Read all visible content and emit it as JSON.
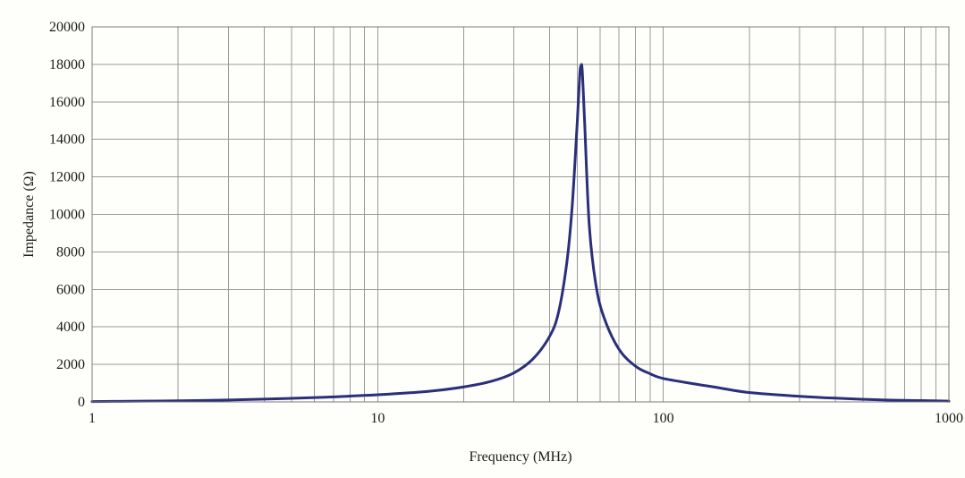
{
  "chart_data": {
    "type": "line",
    "xlabel": "Frequency (MHz)",
    "ylabel": "Impedance (Ω)",
    "x_scale": "log",
    "xlim": [
      1,
      1000
    ],
    "ylim": [
      0,
      20000
    ],
    "grid": true,
    "x_tick_labels": [
      "1",
      "10",
      "100",
      "1000"
    ],
    "x_tick_values": [
      1,
      10,
      100,
      1000
    ],
    "y_tick_labels": [
      "0",
      "2000",
      "4000",
      "6000",
      "8000",
      "10000",
      "12000",
      "14000",
      "16000",
      "18000",
      "20000"
    ],
    "y_tick_values": [
      0,
      2000,
      4000,
      6000,
      8000,
      10000,
      12000,
      14000,
      16000,
      18000,
      20000
    ],
    "series": [
      {
        "color": "#2b2f7a",
        "points": [
          [
            1,
            20
          ],
          [
            1.5,
            40
          ],
          [
            2,
            60
          ],
          [
            3,
            100
          ],
          [
            4,
            150
          ],
          [
            5,
            190
          ],
          [
            7,
            270
          ],
          [
            10,
            380
          ],
          [
            15,
            560
          ],
          [
            20,
            800
          ],
          [
            25,
            1100
          ],
          [
            30,
            1550
          ],
          [
            35,
            2300
          ],
          [
            40,
            3500
          ],
          [
            43,
            4800
          ],
          [
            46,
            7500
          ],
          [
            48,
            10500
          ],
          [
            50,
            15000
          ],
          [
            51,
            17500
          ],
          [
            51.5,
            17900
          ],
          [
            52,
            17700
          ],
          [
            53,
            15000
          ],
          [
            55,
            9500
          ],
          [
            58,
            6300
          ],
          [
            62,
            4500
          ],
          [
            70,
            2800
          ],
          [
            80,
            1900
          ],
          [
            90,
            1500
          ],
          [
            100,
            1250
          ],
          [
            130,
            950
          ],
          [
            150,
            800
          ],
          [
            200,
            500
          ],
          [
            300,
            300
          ],
          [
            400,
            200
          ],
          [
            600,
            100
          ],
          [
            800,
            70
          ],
          [
            1000,
            40
          ]
        ]
      }
    ]
  }
}
